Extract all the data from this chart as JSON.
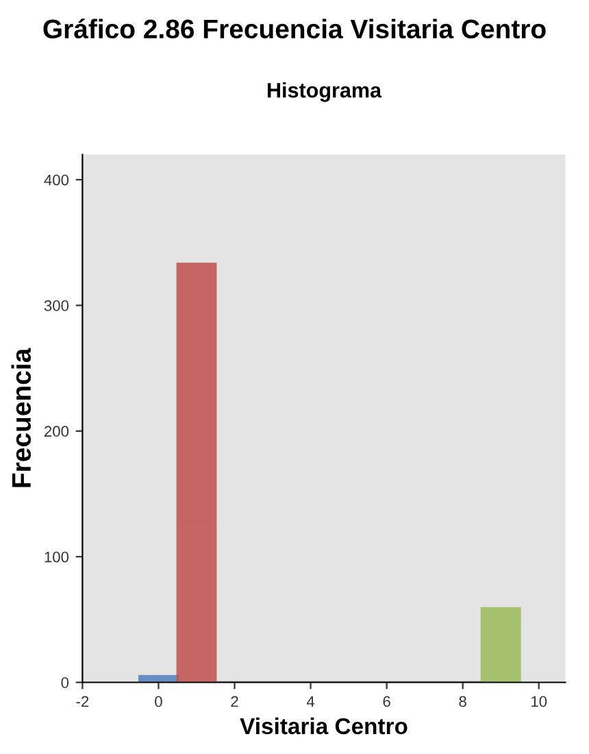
{
  "chart_data": {
    "type": "histogram",
    "title": "Gráfico 2.86 Frecuencia Visitaria Centro",
    "subtitle": "Histograma",
    "xlabel": "Visitaria Centro",
    "ylabel": "Frecuencia",
    "bins": [
      -0.5,
      0.5,
      1.5,
      2.5,
      3.5,
      4.5,
      5.5,
      6.5,
      7.5,
      8.5,
      9.5
    ],
    "values": [
      5,
      333,
      0,
      0,
      0,
      0,
      0,
      0,
      0,
      59
    ],
    "colors": [
      "#4f81bd",
      "#c0504d",
      "#808080",
      "#808080",
      "#808080",
      "#808080",
      "#808080",
      "#808080",
      "#808080",
      "#9bbb59"
    ],
    "xlim": [
      -2,
      10.7
    ],
    "xticks": [
      -2,
      0,
      2,
      4,
      6,
      8,
      10
    ],
    "ylim": [
      0,
      420
    ],
    "yticks": [
      0,
      100,
      200,
      300,
      400
    ],
    "grid": false,
    "legend": false
  }
}
